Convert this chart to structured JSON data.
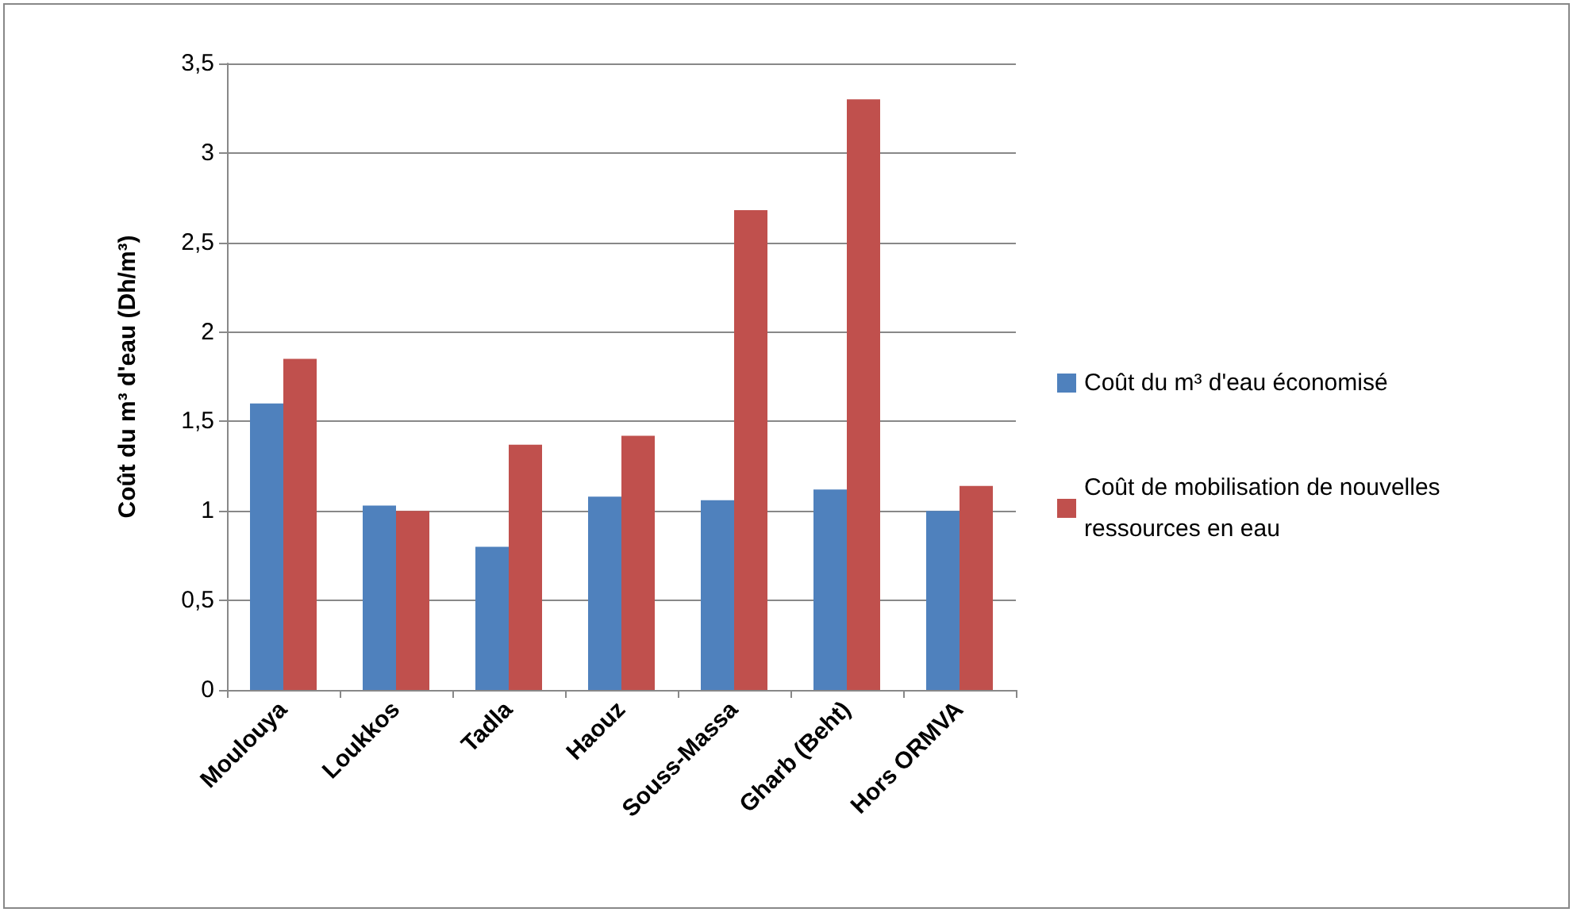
{
  "chart_data": {
    "type": "bar",
    "ylabel": "Coût du m³ d'eau (Dh/m³)",
    "categories": [
      "Moulouya",
      "Loukkos",
      "Tadla",
      "Haouz",
      "Souss-Massa",
      "Gharb (Beht)",
      "Hors ORMVA"
    ],
    "series": [
      {
        "name": "Coût du m³ d'eau économisé",
        "color": "#4f81bd",
        "values": [
          1.6,
          1.03,
          0.8,
          1.08,
          1.06,
          1.12,
          1.0
        ]
      },
      {
        "name": "Coût de mobilisation de nouvelles ressources en eau",
        "color": "#c0504d",
        "values": [
          1.85,
          1.0,
          1.37,
          1.42,
          2.68,
          3.3,
          1.14
        ]
      }
    ],
    "ylim": [
      0,
      3.5
    ],
    "yticks": [
      0,
      {
        "value": 0.5,
        "label": "0,5"
      },
      1,
      {
        "value": 1.5,
        "label": "1,5"
      },
      2,
      {
        "value": 2.5,
        "label": "2,5"
      },
      3,
      {
        "value": 3.5,
        "label": "3,5"
      }
    ],
    "grid": "y",
    "legend": "right"
  }
}
